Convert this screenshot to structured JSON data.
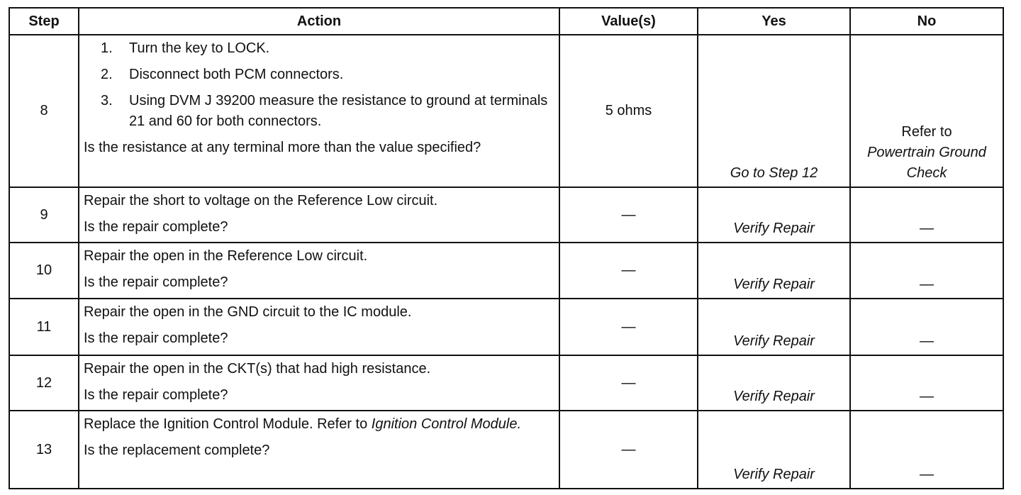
{
  "table": {
    "header": [
      "Step",
      "Action",
      "Value(s)",
      "Yes",
      "No"
    ],
    "rows": [
      {
        "step": "8",
        "action": [
          {
            "number": "1.",
            "text": "Turn the key to LOCK."
          },
          {
            "number": "2.",
            "text": "Disconnect both PCM connectors."
          },
          {
            "number": "3.",
            "text": "Using DVM J 39200 measure the resistance to ground at terminals 21 and 60 for both connectors."
          },
          {
            "text": "Is the resistance at any terminal more than the value specified?"
          }
        ],
        "value": "5 ohms",
        "yes": {
          "italic": "Go to Step 12"
        },
        "no": {
          "text": "Refer to",
          "italic": "Powertrain Ground Check"
        }
      },
      {
        "step": "9",
        "action": [
          {
            "text": "Repair the short to voltage on the Reference Low circuit."
          },
          {
            "text": "Is the repair complete?"
          }
        ],
        "value": "—",
        "yes": {
          "italic": "Verify Repair"
        },
        "no": {
          "text": "—"
        }
      },
      {
        "step": "10",
        "action": [
          {
            "text": "Repair the open in the Reference Low circuit."
          },
          {
            "text": "Is the repair complete?"
          }
        ],
        "value": "—",
        "yes": {
          "italic": "Verify Repair"
        },
        "no": {
          "text": "—"
        }
      },
      {
        "step": "11",
        "action": [
          {
            "text": "Repair the open in the GND circuit to the IC module."
          },
          {
            "text": "Is the repair complete?"
          }
        ],
        "value": "—",
        "yes": {
          "italic": "Verify Repair"
        },
        "no": {
          "text": "—"
        }
      },
      {
        "step": "12",
        "action": [
          {
            "text": "Repair the open in the CKT(s) that had high resistance."
          },
          {
            "text": "Is the repair complete?"
          }
        ],
        "value": "—",
        "yes": {
          "italic": "Verify Repair"
        },
        "no": {
          "text": "—"
        }
      },
      {
        "step": "13",
        "action": [
          {
            "text": "Replace the Ignition Control Module. Refer to",
            "italic": "Ignition Control Module."
          },
          {
            "text": "Is the replacement complete?"
          }
        ],
        "value": "—",
        "yes": {
          "italic": "Verify Repair"
        },
        "no": {
          "text": "—"
        }
      }
    ]
  }
}
